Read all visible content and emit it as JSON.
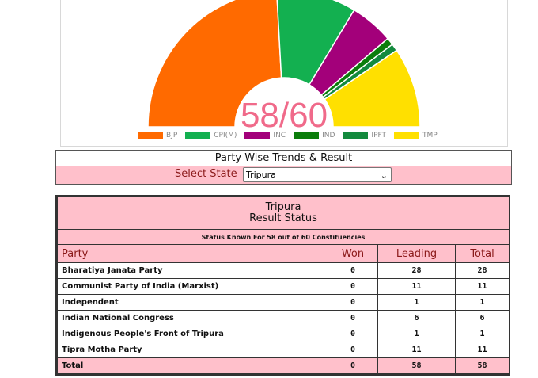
{
  "chart": {
    "center_label": "58/60",
    "segments": [
      {
        "party": "BJP",
        "seats": 28,
        "color": "#ff6a00"
      },
      {
        "party": "CPI(M)",
        "seats": 11,
        "color": "#13b050"
      },
      {
        "party": "INC",
        "seats": 6,
        "color": "#a3007a"
      },
      {
        "party": "IND",
        "seats": 1,
        "color": "#0b7d0b"
      },
      {
        "party": "IPFT",
        "seats": 1,
        "color": "#138a3e"
      },
      {
        "party": "TMP",
        "seats": 11,
        "color": "#ffe000"
      }
    ],
    "center_label_color": "#f06a8a"
  },
  "trends": {
    "title": "Party Wise Trends & Result",
    "select_label": "Select State",
    "selected_state": "Tripura"
  },
  "results": {
    "state": "Tripura",
    "subtitle": "Result Status",
    "status_line": "Status Known For 58 out of 60 Constituencies",
    "columns": {
      "party": "Party",
      "won": "Won",
      "leading": "Leading",
      "total": "Total"
    },
    "rows": [
      {
        "party": "Bharatiya Janata Party",
        "won": "0",
        "leading": "28",
        "total": "28"
      },
      {
        "party": "Communist Party of India (Marxist)",
        "won": "0",
        "leading": "11",
        "total": "11"
      },
      {
        "party": "Independent",
        "won": "0",
        "leading": "1",
        "total": "1"
      },
      {
        "party": "Indian National Congress",
        "won": "0",
        "leading": "6",
        "total": "6"
      },
      {
        "party": "Indigenous People's Front of Tripura",
        "won": "0",
        "leading": "1",
        "total": "1"
      },
      {
        "party": "Tipra Motha Party",
        "won": "0",
        "leading": "11",
        "total": "11"
      }
    ],
    "total": {
      "label": "Total",
      "won": "0",
      "leading": "58",
      "total": "58"
    }
  },
  "colors": {
    "pink": "#ffc0cb",
    "header_text": "#8b1a1a"
  }
}
